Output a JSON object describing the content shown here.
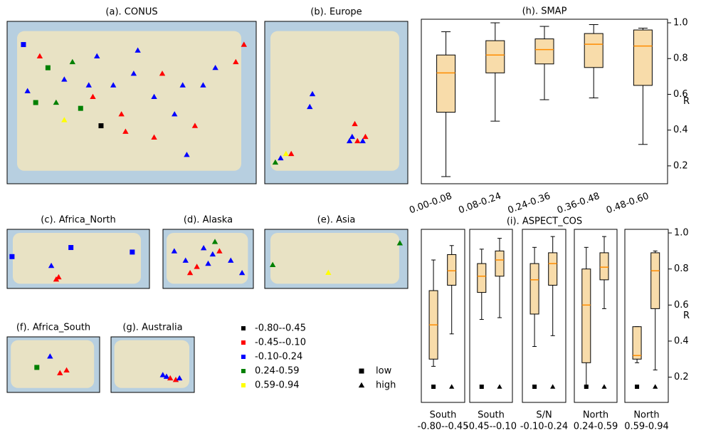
{
  "maps": [
    {
      "title": "(a). CONUS",
      "lonlim": [
        -126,
        -65
      ],
      "latlim": [
        23,
        51
      ],
      "lon": [
        -122,
        -118,
        -116,
        -112,
        -110,
        -106,
        -105,
        -108,
        -112,
        -100,
        -98,
        -97,
        -103,
        -95,
        -90,
        -88,
        -85,
        -83,
        -80,
        -78,
        -75,
        -70,
        -82,
        -90,
        -119,
        -121,
        -114,
        -104,
        -94,
        -68
      ],
      "lat": [
        47,
        45,
        43,
        41,
        44,
        40,
        38,
        36,
        34,
        40,
        35,
        32,
        33,
        42,
        38,
        42,
        35,
        40,
        33,
        40,
        43,
        44,
        28,
        31,
        37,
        39,
        37,
        45,
        46,
        47
      ],
      "class": [
        2,
        1,
        3,
        2,
        3,
        2,
        1,
        3,
        4,
        2,
        1,
        1,
        0,
        2,
        2,
        1,
        2,
        2,
        1,
        2,
        2,
        1,
        2,
        1,
        3,
        2,
        3,
        2,
        2,
        1
      ],
      "marker": [
        0,
        1,
        0,
        1,
        1,
        1,
        1,
        0,
        1,
        1,
        1,
        1,
        0,
        1,
        1,
        1,
        1,
        1,
        1,
        1,
        1,
        1,
        1,
        1,
        0,
        1,
        1,
        1,
        1,
        1
      ]
    },
    {
      "title": "(b). Europe",
      "lonlim": [
        -12,
        42
      ],
      "latlim": [
        34,
        72
      ],
      "lon": [
        -8,
        -6,
        -4,
        -2,
        5,
        21,
        23,
        25,
        26,
        20,
        6,
        22
      ],
      "lat": [
        39,
        40,
        41,
        41,
        52,
        45,
        44,
        44,
        45,
        44,
        55,
        48
      ],
      "class": [
        3,
        2,
        4,
        1,
        2,
        2,
        1,
        2,
        1,
        2,
        2,
        1
      ],
      "marker": [
        1,
        1,
        1,
        1,
        1,
        1,
        1,
        1,
        1,
        1,
        1,
        1
      ]
    },
    {
      "title": "(c). Africa_North",
      "lonlim": [
        -18,
        40
      ],
      "latlim": [
        4,
        30
      ],
      "lon": [
        -16,
        0,
        2,
        3,
        8,
        33
      ],
      "lat": [
        18,
        14,
        8,
        9,
        22,
        20
      ],
      "class": [
        2,
        2,
        1,
        1,
        2,
        2
      ],
      "marker": [
        0,
        1,
        1,
        1,
        0,
        0
      ]
    },
    {
      "title": "(d). Alaska",
      "lonlim": [
        -170,
        -130
      ],
      "latlim": [
        53,
        72
      ],
      "lon": [
        -165,
        -160,
        -155,
        -150,
        -148,
        -147,
        -145,
        -140,
        -135,
        -152,
        -158
      ],
      "lat": [
        65,
        62,
        60,
        61,
        64,
        68,
        65,
        62,
        58,
        66,
        58
      ],
      "class": [
        2,
        2,
        1,
        2,
        2,
        3,
        1,
        2,
        2,
        2,
        1
      ],
      "marker": [
        1,
        1,
        1,
        1,
        1,
        1,
        1,
        1,
        1,
        1,
        1
      ]
    },
    {
      "title": "(e). Asia",
      "lonlim": [
        58,
        130
      ],
      "latlim": [
        20,
        50
      ],
      "lon": [
        62,
        90,
        126
      ],
      "lat": [
        32,
        28,
        43
      ],
      "class": [
        3,
        4,
        3
      ],
      "marker": [
        1,
        1,
        1
      ]
    },
    {
      "title": "(f). Africa_South",
      "lonlim": [
        12,
        40
      ],
      "latlim": [
        -36,
        -16
      ],
      "lon": [
        21,
        25,
        28,
        30
      ],
      "lat": [
        -27,
        -23,
        -29,
        -28
      ],
      "class": [
        3,
        2,
        1,
        1
      ],
      "marker": [
        0,
        1,
        1,
        1
      ]
    },
    {
      "title": "(g). Australia",
      "lonlim": [
        110,
        155
      ],
      "latlim": [
        -45,
        -10
      ],
      "lon": [
        138,
        140,
        142,
        145,
        147
      ],
      "lat": [
        -34,
        -35,
        -36,
        -37,
        -36
      ],
      "class": [
        2,
        2,
        1,
        1,
        2
      ],
      "marker": [
        1,
        1,
        1,
        1,
        1
      ]
    }
  ],
  "legend": {
    "classes": [
      {
        "label": "-0.80--0.45",
        "color": "#000000"
      },
      {
        "label": "-0.45--0.10",
        "color": "#ff0000"
      },
      {
        "label": "-0.10-0.24",
        "color": "#0000ff"
      },
      {
        "label": "0.24-0.59",
        "color": "#008000"
      },
      {
        "label": "0.59-0.94",
        "color": "#ffff00"
      }
    ],
    "markers": [
      {
        "label": "low"
      },
      {
        "label": "high"
      }
    ]
  },
  "chart_data": [
    {
      "type": "box",
      "title": "(h). SMAP",
      "ylabel": "R",
      "color": "#f8dcaa",
      "median_color": "#ff8c00",
      "categories": [
        "0.00-0.08",
        "0.08-0.24",
        "0.24-0.36",
        "0.36-0.48",
        "0.48-0.60"
      ],
      "boxes": [
        {
          "min": 0.14,
          "q1": 0.5,
          "median": 0.72,
          "q3": 0.82,
          "max": 0.95
        },
        {
          "min": 0.45,
          "q1": 0.72,
          "median": 0.82,
          "q3": 0.9,
          "max": 1.0
        },
        {
          "min": 0.57,
          "q1": 0.77,
          "median": 0.85,
          "q3": 0.91,
          "max": 0.98
        },
        {
          "min": 0.58,
          "q1": 0.75,
          "median": 0.88,
          "q3": 0.94,
          "max": 0.99
        },
        {
          "min": 0.32,
          "q1": 0.65,
          "median": 0.87,
          "q3": 0.96,
          "max": 0.97
        }
      ],
      "ylim": [
        0.1,
        1.02
      ],
      "yticks": [
        0.2,
        0.4,
        0.6,
        0.8,
        {
          "value": 1,
          "label": "1.0"
        }
      ]
    },
    {
      "type": "box-panels",
      "title": "(i). ASPECT_COS",
      "ylabel": "R",
      "color": "#f8dcaa",
      "median_color": "#ff8c00",
      "panels": [
        {
          "label": [
            "South",
            "-0.80--0.45"
          ],
          "boxes": [
            {
              "min": 0.26,
              "q1": 0.3,
              "median": 0.49,
              "q3": 0.68,
              "max": 0.85
            },
            {
              "min": 0.44,
              "q1": 0.71,
              "median": 0.79,
              "q3": 0.88,
              "max": 0.93
            }
          ]
        },
        {
          "label": [
            "South",
            "-0.45--0.10"
          ],
          "boxes": [
            {
              "min": 0.52,
              "q1": 0.67,
              "median": 0.76,
              "q3": 0.83,
              "max": 0.91
            },
            {
              "min": 0.53,
              "q1": 0.76,
              "median": 0.85,
              "q3": 0.9,
              "max": 0.97
            }
          ]
        },
        {
          "label": [
            "S/N",
            "-0.10-0.24"
          ],
          "boxes": [
            {
              "min": 0.37,
              "q1": 0.55,
              "median": 0.74,
              "q3": 0.83,
              "max": 0.92
            },
            {
              "min": 0.43,
              "q1": 0.71,
              "median": 0.83,
              "q3": 0.89,
              "max": 0.98
            }
          ]
        },
        {
          "label": [
            "North",
            "0.24-0.59"
          ],
          "boxes": [
            {
              "min": 0.15,
              "q1": 0.28,
              "median": 0.6,
              "q3": 0.8,
              "max": 0.92
            },
            {
              "min": 0.58,
              "q1": 0.74,
              "median": 0.81,
              "q3": 0.89,
              "max": 0.98
            }
          ]
        },
        {
          "label": [
            "North",
            "0.59-0.94"
          ],
          "boxes": [
            {
              "min": 0.28,
              "q1": 0.3,
              "median": 0.32,
              "q3": 0.48,
              "max": 0.48
            },
            {
              "min": 0.24,
              "q1": 0.58,
              "median": 0.79,
              "q3": 0.89,
              "max": 0.9
            }
          ]
        }
      ],
      "ylim": [
        0.06,
        1.02
      ],
      "yticks": [
        0.2,
        0.4,
        0.6,
        0.8,
        {
          "value": 1,
          "label": "1.0"
        }
      ]
    }
  ]
}
